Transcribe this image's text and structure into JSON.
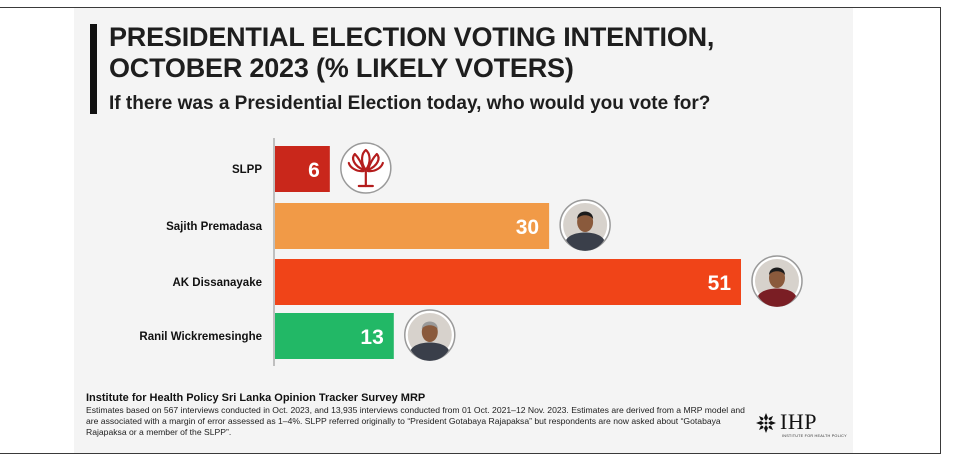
{
  "header": {
    "title": "PRESIDENTIAL ELECTION VOTING INTENTION, OCTOBER 2023 (% LIKELY VOTERS)",
    "subtitle": "If there was a Presidential Election today, who would you vote for?"
  },
  "chart_data": {
    "type": "bar",
    "orientation": "horizontal",
    "title": "PRESIDENTIAL ELECTION VOTING INTENTION, OCTOBER 2023 (% LIKELY VOTERS)",
    "subtitle": "If there was a Presidential Election today, who would you vote for?",
    "categories": [
      "SLPP",
      "Sajith Premadasa",
      "AK Dissanayake",
      "Ranil Wickremesinghe"
    ],
    "values": [
      6,
      30,
      51,
      13
    ],
    "bar_colors": [
      "#c9271b",
      "#f19a47",
      "#f04418",
      "#22b866"
    ],
    "icons": [
      "lotus-icon",
      "portrait-icon",
      "portrait-icon",
      "portrait-icon"
    ],
    "xlim": [
      0,
      51
    ],
    "grid": false,
    "legend": "none"
  },
  "source": {
    "title": "Institute for Health Policy Sri Lanka Opinion Tracker Survey MRP",
    "note": "Estimates based on 567 interviews conducted in Oct. 2023, and 13,935 interviews conducted from 01 Oct. 2021–12 Nov. 2023. Estimates are derived from a MRP model and are associated with a margin of error assessed as 1–4%. SLPP referred originally to “President Gotabaya Rajapaksa” but respondents are now asked about “Gotabaya Rajapaksa or a member of the SLPP”."
  },
  "logo": {
    "text": "IHP",
    "tagline": "INSTITUTE FOR HEALTH POLICY"
  }
}
